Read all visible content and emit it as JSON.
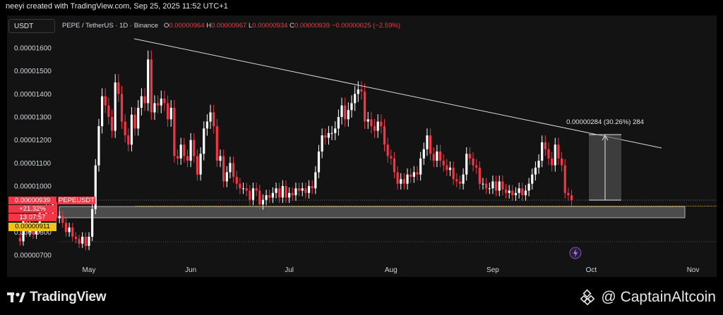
{
  "header": {
    "creator": "neeyi created with TradingView.com, Sep 25, 2025 11:52 UTC+1"
  },
  "toolbar": {
    "currency": "USDT"
  },
  "legend": {
    "symbol": "PEPE / TetherUS · 1D · Binance",
    "open_label": "O",
    "open": "0.00000964",
    "high_label": "H",
    "high": "0.00000967",
    "low_label": "L",
    "low": "0.00000934",
    "close_label": "C",
    "close": "0.00000939",
    "change": "−0.00000025 (−2.59%)"
  },
  "price_tags": {
    "current_price": "0.00000939",
    "ticker": "PEPEUSDT",
    "change_pct": "+21.32%",
    "countdown": "13:07:57",
    "support_price": "0.00000911"
  },
  "measure": {
    "label": "0.00000284 (30.26%) 284"
  },
  "footer": {
    "brand_left": "TradingView",
    "brand_right": "@ CaptainAltcoin"
  },
  "colors": {
    "up": "#ffffff",
    "down": "#f23645",
    "support": "#f0c419",
    "trend": "#d9d9d9"
  },
  "chart_data": {
    "type": "candlestick",
    "symbol": "PEPE / TetherUS",
    "interval": "1D",
    "exchange": "Binance",
    "y_ticks": [
      "0.00001600",
      "0.00001500",
      "0.00001400",
      "0.00001300",
      "0.00001200",
      "0.00001100",
      "0.00001000",
      "0.00000800",
      "0.00000700"
    ],
    "ylim": [
      6.6e-06,
      1.66e-05
    ],
    "x_ticks": [
      "May",
      "Jun",
      "Jul",
      "Aug",
      "Sep",
      "Oct",
      "Nov"
    ],
    "x_tick_dates": [
      "2025-05-01",
      "2025-06-01",
      "2025-07-01",
      "2025-08-01",
      "2025-09-01",
      "2025-10-01",
      "2025-11-01"
    ],
    "first_date": "2025-04-01",
    "last_date": "2025-11-13",
    "candles_close": [
      7.6e-06,
      8.5e-06,
      8e-06,
      8.3e-06,
      7.9e-06,
      8.2e-06,
      8.9e-06,
      8.7e-06,
      9.1e-06,
      8.8e-06,
      9.3e-06,
      8.6e-06,
      8.7e-06,
      8.4e-06,
      8e-06,
      8.2e-06,
      7.8e-06,
      7.7e-06,
      7.5e-06,
      7.8e-06,
      7.4e-06,
      7.8e-06,
      9e-06,
      1.09e-05,
      1.26e-05,
      1.39e-05,
      1.35e-05,
      1.3e-05,
      1.24e-05,
      1.45e-05,
      1.4e-05,
      1.28e-05,
      1.22e-05,
      1.18e-05,
      1.31e-05,
      1.25e-05,
      1.34e-05,
      1.39e-05,
      1.36e-05,
      1.55e-05,
      1.32e-05,
      1.36e-05,
      1.35e-05,
      1.38e-05,
      1.36e-05,
      1.29e-05,
      1.34e-05,
      1.13e-05,
      1.12e-05,
      1.18e-05,
      1.13e-05,
      1.11e-05,
      1.2e-05,
      1.13e-05,
      1.05e-05,
      1.14e-05,
      1.25e-05,
      1.28e-05,
      1.32e-05,
      1.26e-05,
      1.11e-05,
      1.13e-05,
      1.02e-05,
      1.06e-05,
      1.1e-05,
      1.04e-05,
      1.01e-05,
      9.9e-06,
      9.9e-06,
      9.8e-06,
      9.4e-06,
      9.9e-06,
      9.8e-06,
      9.2e-06,
      9.4e-06,
      9.6e-06,
      9.5e-06,
      9.7e-06,
      9.9e-06,
      9.5e-06,
      1e-05,
      9.5e-06,
      9.7e-06,
      9.6e-06,
      9.9e-06,
      9.8e-06,
      9.9e-06,
      9.7e-06,
      1e-05,
      9.9e-06,
      1.06e-05,
      1.15e-05,
      1.22e-05,
      1.21e-05,
      1.23e-05,
      1.23e-05,
      1.25e-05,
      1.3e-05,
      1.35e-05,
      1.29e-05,
      1.33e-05,
      1.36e-05,
      1.4e-05,
      1.42e-05,
      1.41e-05,
      1.28e-05,
      1.29e-05,
      1.26e-05,
      1.24e-05,
      1.28e-05,
      1.26e-05,
      1.18e-05,
      1.13e-05,
      1.12e-05,
      1.06e-05,
      1.01e-05,
      1.03e-05,
      1.01e-05,
      1.05e-05,
      1.04e-05,
      1.06e-05,
      1.05e-05,
      1.12e-05,
      1.16e-05,
      1.22e-05,
      1.14e-05,
      1.11e-05,
      1.15e-05,
      1.11e-05,
      1.09e-05,
      1.07e-05,
      1.08e-05,
      1.03e-05,
      1.02e-05,
      1.01e-05,
      1.05e-05,
      1.14e-05,
      1.12e-05,
      1.09e-05,
      1.08e-05,
      1.01e-05,
      1.01e-05,
      9.9e-06,
      9.9e-06,
      1.02e-05,
      9.8e-06,
      1.02e-05,
      9.85e-06,
      9.7e-06,
      9.8e-06,
      9.6e-06,
      9.7e-06,
      9.9e-06,
      9.6e-06,
      9.8e-06,
      1.01e-05,
      1.05e-05,
      1.08e-05,
      1.11e-05,
      1.19e-05,
      1.16e-05,
      1.12e-05,
      1.09e-05,
      1.18e-05,
      1.12e-05,
      1.09e-05,
      9.7e-06,
      9.6e-06,
      9.39e-06
    ]
  }
}
